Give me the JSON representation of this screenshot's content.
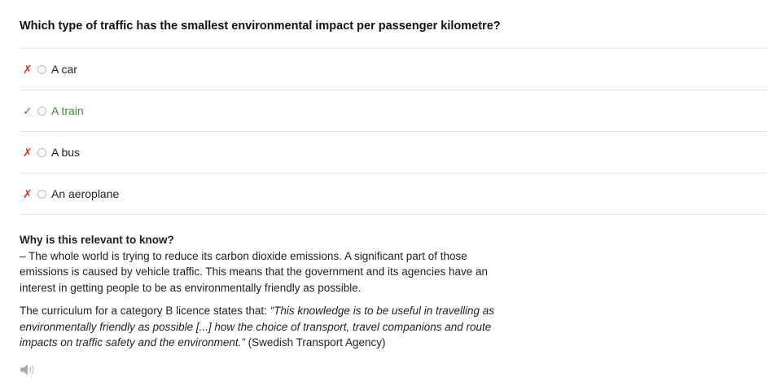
{
  "question": "Which type of traffic has the smallest environmental impact per passenger kilometre?",
  "options": [
    {
      "label": "A car",
      "mark": "✗",
      "status": "wrong"
    },
    {
      "label": "A train",
      "mark": "✓",
      "status": "correct"
    },
    {
      "label": "A bus",
      "mark": "✗",
      "status": "wrong"
    },
    {
      "label": "An aeroplane",
      "mark": "✗",
      "status": "wrong"
    }
  ],
  "explanation": {
    "title": "Why is this relevant to know?",
    "text": "– The whole world is trying to reduce its carbon dioxide emissions. A significant part of those emissions is caused by vehicle traffic. This means that the government and its agencies have an interest in getting people to be as environmentally friendly as possible.",
    "curriculum_prefix": "The curriculum for a category B licence states that: ",
    "curriculum_quote": "“This knowledge is to be useful in travelling as environmentally friendly as possible [...] how the choice of transport, travel companions and route impacts on traffic safety and the environment.”",
    "curriculum_source": " (Swedish Transport Agency)"
  },
  "colors": {
    "wrong": "#e0332e",
    "correct": "#3a8f2e",
    "divider": "#e6e6e6"
  },
  "icons": {
    "audio": "speaker-icon"
  }
}
